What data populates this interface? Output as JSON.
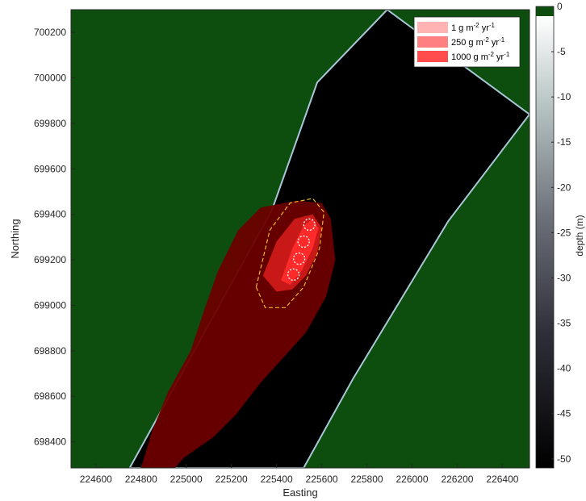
{
  "chart_data": {
    "type": "heatmap",
    "xlabel": "Easting",
    "ylabel": "Northing",
    "xlim": [
      224490,
      226520
    ],
    "ylim": [
      698285,
      700300
    ],
    "x_ticks": [
      224600,
      224800,
      225000,
      225200,
      225400,
      225600,
      225800,
      226000,
      226200,
      226400
    ],
    "y_ticks": [
      698400,
      698600,
      698800,
      699000,
      699200,
      699400,
      699600,
      699800,
      700000,
      700200
    ],
    "colorbar": {
      "label": "depth (m)",
      "range": [
        -51,
        0
      ],
      "ticks": [
        0,
        -5,
        -10,
        -15,
        -20,
        -25,
        -30,
        -35,
        -40,
        -45,
        -50
      ],
      "land_color": "#0d4d0d",
      "shallow_color": "#ffffff",
      "deep_color": "#000000"
    },
    "legend": {
      "placement": "top-right",
      "entries": [
        {
          "label": "1 g m-2 yr-1",
          "color": "#ffb3b3"
        },
        {
          "label": "250 g m-2 yr-1",
          "color": "#ff8080"
        },
        {
          "label": "1000 g m-2 yr-1",
          "color": "#ff4d4d"
        }
      ]
    },
    "channel": {
      "west_edge": [
        [
          224750,
          698285
        ],
        [
          225380,
          699420
        ],
        [
          225580,
          699980
        ],
        [
          225890,
          700300
        ]
      ],
      "east_edge": [
        [
          225520,
          698285
        ],
        [
          225740,
          698680
        ],
        [
          226160,
          699370
        ],
        [
          226520,
          699840
        ]
      ]
    },
    "cage_positions": [
      [
        225545,
        699355
      ],
      [
        225520,
        699280
      ],
      [
        225500,
        699205
      ],
      [
        225475,
        699135
      ]
    ],
    "footprints": [
      {
        "level": "1 g m-2 yr-1",
        "polygon": [
          [
            224800,
            698285
          ],
          [
            224850,
            698450
          ],
          [
            224920,
            698620
          ],
          [
            225020,
            698800
          ],
          [
            225080,
            698980
          ],
          [
            225140,
            699150
          ],
          [
            225230,
            699330
          ],
          [
            225330,
            699430
          ],
          [
            225490,
            699460
          ],
          [
            225600,
            699450
          ],
          [
            225640,
            699380
          ],
          [
            225660,
            699200
          ],
          [
            225620,
            699040
          ],
          [
            225530,
            698880
          ],
          [
            225430,
            698770
          ],
          [
            225330,
            698660
          ],
          [
            225220,
            698520
          ],
          [
            225120,
            698420
          ],
          [
            224990,
            698330
          ],
          [
            224950,
            698285
          ]
        ]
      },
      {
        "level": "250 g m-2 yr-1",
        "polygon": [
          [
            225340,
            699130
          ],
          [
            225400,
            699280
          ],
          [
            225480,
            699380
          ],
          [
            225560,
            699400
          ],
          [
            225600,
            699340
          ],
          [
            225580,
            699230
          ],
          [
            225530,
            699130
          ],
          [
            225470,
            699070
          ],
          [
            225400,
            699060
          ]
        ]
      },
      {
        "level": "1000 g m-2 yr-1",
        "polygon": [
          [
            225420,
            699110
          ],
          [
            225470,
            699250
          ],
          [
            225520,
            699350
          ],
          [
            225560,
            699380
          ],
          [
            225585,
            699340
          ],
          [
            225560,
            699250
          ],
          [
            225510,
            699150
          ],
          [
            225460,
            699090
          ]
        ]
      }
    ],
    "zone_boundary": [
      [
        225310,
        699080
      ],
      [
        225370,
        699330
      ],
      [
        225460,
        699450
      ],
      [
        225560,
        699470
      ],
      [
        225610,
        699410
      ],
      [
        225590,
        699250
      ],
      [
        225520,
        699080
      ],
      [
        225440,
        698990
      ],
      [
        225350,
        698990
      ]
    ]
  }
}
